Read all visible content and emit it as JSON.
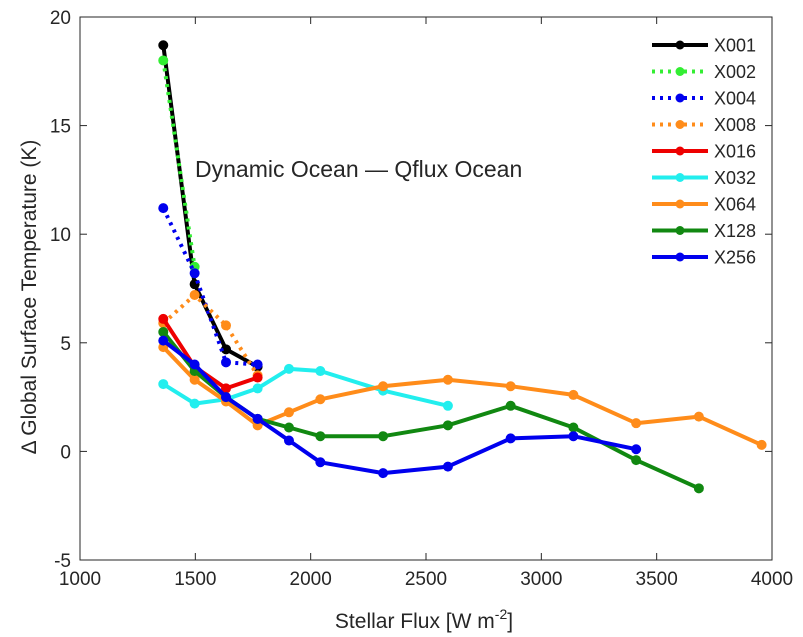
{
  "chart_data": {
    "type": "line",
    "title": "",
    "annotation": "Dynamic Ocean — Qflux Ocean",
    "xlabel": "Stellar Flux [W m",
    "xlabel_sup": "-2",
    "xlabel_end": "]",
    "ylabel": "Δ Global Surface Temperature (K)",
    "xlim": [
      1000,
      4000
    ],
    "ylim": [
      -5,
      20
    ],
    "xticks": [
      "1000",
      "1500",
      "2000",
      "2500",
      "3000",
      "3500",
      "4000"
    ],
    "yticks": [
      "-5",
      "0",
      "5",
      "10",
      "15",
      "20"
    ],
    "grid": false,
    "legend_position": "top-right",
    "series": [
      {
        "name": "X001",
        "color": "#000000",
        "dash": "solid",
        "x": [
          1361,
          1497,
          1633,
          1770
        ],
        "y": [
          18.7,
          7.7,
          4.7,
          3.9
        ]
      },
      {
        "name": "X002",
        "color": "#33ee33",
        "dash": "dotted",
        "x": [
          1361,
          1497
        ],
        "y": [
          18.0,
          8.5
        ]
      },
      {
        "name": "X004",
        "color": "#0000ee",
        "dash": "dotted",
        "x": [
          1361,
          1497,
          1633,
          1770
        ],
        "y": [
          11.2,
          8.2,
          4.1,
          4.0
        ]
      },
      {
        "name": "X008",
        "color": "#ff8c1a",
        "dash": "dotted",
        "x": [
          1361,
          1497,
          1633,
          1770
        ],
        "y": [
          5.9,
          7.2,
          5.8,
          3.5
        ]
      },
      {
        "name": "X016",
        "color": "#ee0000",
        "dash": "solid",
        "x": [
          1361,
          1497,
          1633,
          1770
        ],
        "y": [
          6.1,
          3.9,
          2.9,
          3.4
        ]
      },
      {
        "name": "X032",
        "color": "#22eeee",
        "dash": "solid",
        "x": [
          1361,
          1497,
          1633,
          1770,
          1906,
          2042,
          2314,
          2595
        ],
        "y": [
          3.1,
          2.2,
          2.4,
          2.9,
          3.8,
          3.7,
          2.8,
          2.1
        ]
      },
      {
        "name": "X064",
        "color": "#ff8c1a",
        "dash": "solid",
        "x": [
          1361,
          1497,
          1633,
          1770,
          1906,
          2042,
          2314,
          2595,
          2867,
          3139,
          3411,
          3683,
          3955
        ],
        "y": [
          4.8,
          3.3,
          2.3,
          1.2,
          1.8,
          2.4,
          3.0,
          3.3,
          3.0,
          2.6,
          1.3,
          1.6,
          0.3
        ]
      },
      {
        "name": "X128",
        "color": "#118811",
        "dash": "solid",
        "x": [
          1361,
          1497,
          1633,
          1770,
          1906,
          2042,
          2314,
          2595,
          2867,
          3139,
          3411,
          3683
        ],
        "y": [
          5.5,
          3.7,
          2.5,
          1.5,
          1.1,
          0.7,
          0.7,
          1.2,
          2.1,
          1.1,
          -0.4,
          -1.7
        ]
      },
      {
        "name": "X256",
        "color": "#0000ee",
        "dash": "solid",
        "x": [
          1361,
          1497,
          1633,
          1770,
          1906,
          2042,
          2314,
          2595,
          2867,
          3139,
          3411
        ],
        "y": [
          5.1,
          4.0,
          2.5,
          1.5,
          0.5,
          -0.5,
          -1.0,
          -0.7,
          0.6,
          0.7,
          0.1
        ]
      }
    ]
  }
}
